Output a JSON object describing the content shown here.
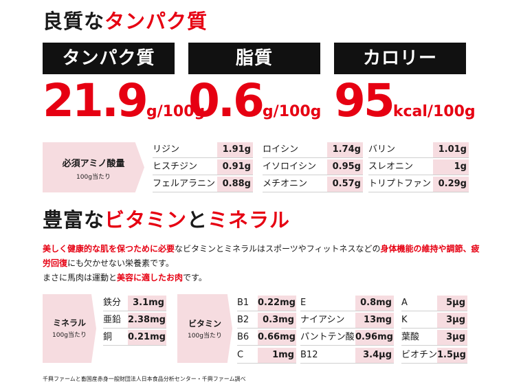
{
  "protein_heading": {
    "part1": "良質な",
    "part2": "タンパク質"
  },
  "nutrients": [
    {
      "label": "タンパク質",
      "value": "21.9",
      "unit": "g/100g"
    },
    {
      "label": "脂質",
      "value": "0.6",
      "unit": "g/100g"
    },
    {
      "label": "カロリー",
      "value": "95",
      "unit": "kcal/100g"
    }
  ],
  "amino": {
    "label_line1": "必須アミノ酸量",
    "label_line2": "100g当たり",
    "columns": [
      [
        {
          "name": "リジン",
          "value": "1.91g"
        },
        {
          "name": "ヒスチジン",
          "value": "0.91g"
        },
        {
          "name": "フェルアラニン",
          "value": "0.88g"
        }
      ],
      [
        {
          "name": "ロイシン",
          "value": "1.74g"
        },
        {
          "name": "イソロイシン",
          "value": "0.95g"
        },
        {
          "name": "メチオニン",
          "value": "0.57g"
        }
      ],
      [
        {
          "name": "バリン",
          "value": "1.01g"
        },
        {
          "name": "スレオニン",
          "value": "1g"
        },
        {
          "name": "トリプトファン",
          "value": "0.29g"
        }
      ]
    ]
  },
  "vitamin_heading": {
    "p1": "豊富な",
    "p2": "ビタミン",
    "p3": "と",
    "p4": "ミネラル"
  },
  "description": {
    "s1": "美しく健康的な肌を保つために必要",
    "s2": "なビタミンとミネラルはスポーツやフィットネスなどの",
    "s3": "身体機能の維持や調節、疲労回復",
    "s4": "にも欠かせない栄養素です。",
    "s5": "まさに馬肉は運動と",
    "s6": "美容に適したお肉",
    "s7": "です。"
  },
  "minerals": {
    "label_line1": "ミネラル",
    "label_line2": "100g当たり",
    "items": [
      {
        "name": "鉄分",
        "value": "3.1mg"
      },
      {
        "name": "亜鉛",
        "value": "2.38mg"
      },
      {
        "name": "銅",
        "value": "0.21mg"
      }
    ]
  },
  "vitamins": {
    "label_line1": "ビタミン",
    "label_line2": "100g当たり",
    "columns": [
      [
        {
          "name": "B1",
          "value": "0.22mg"
        },
        {
          "name": "B2",
          "value": "0.3mg"
        },
        {
          "name": "B6",
          "value": "0.66mg"
        },
        {
          "name": "C",
          "value": "1mg"
        }
      ],
      [
        {
          "name": "E",
          "value": "0.8mg"
        },
        {
          "name": "ナイアシン",
          "value": "13mg"
        },
        {
          "name": "パントテン酸",
          "value": "0.96mg"
        },
        {
          "name": "B12",
          "value": "3.4μg"
        }
      ],
      [
        {
          "name": "A",
          "value": "5μg"
        },
        {
          "name": "K",
          "value": "3μg"
        },
        {
          "name": "葉酸",
          "value": "3μg"
        },
        {
          "name": "ビオチン",
          "value": "1.5μg"
        }
      ]
    ]
  },
  "footnote": "千興ファームと畜国産赤身一般財団法人日本食品分析センター・千興ファーム調べ",
  "colors": {
    "accent": "#e60012",
    "pink": "#f6dce0",
    "header_bg": "#111111"
  }
}
